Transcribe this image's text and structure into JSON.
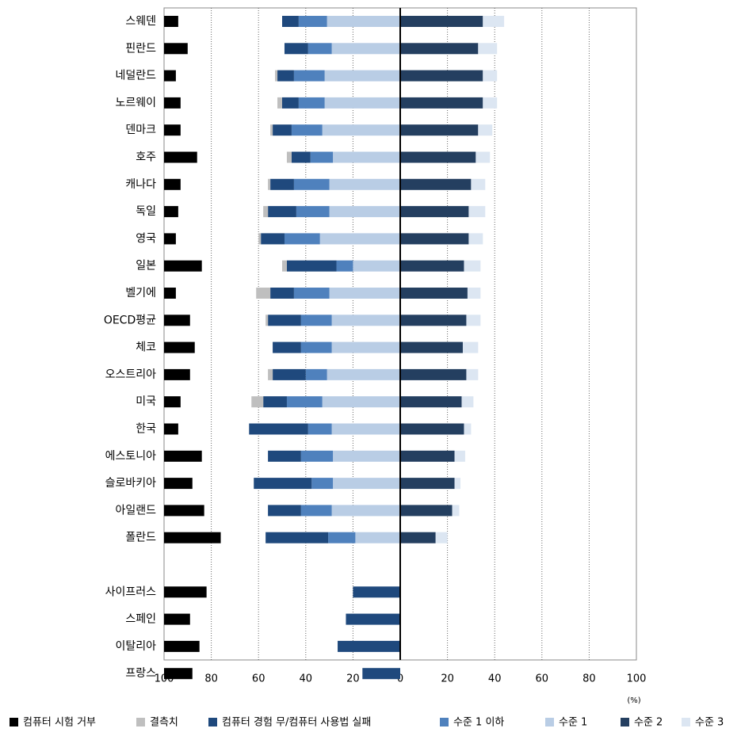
{
  "chart_data": {
    "type": "diverging-stacked-bar",
    "categories": [
      "스웨덴",
      "핀란드",
      "네덜란드",
      "노르웨이",
      "덴마크",
      "호주",
      "캐나다",
      "독일",
      "영국",
      "일본",
      "벨기에",
      "OECD평균",
      "체코",
      "오스트리아",
      "미국",
      "한국",
      "에스토니아",
      "슬로바키아",
      "아일랜드",
      "폴란드",
      null,
      "사이프러스",
      "스페인",
      "이탈리아",
      "프랑스"
    ],
    "series": [
      {
        "name": "컴퓨터 시험 거부",
        "color": "#000000",
        "values": [
          6,
          10,
          5,
          7,
          7,
          14,
          7,
          6,
          5,
          16,
          5,
          11,
          13,
          11,
          7,
          6,
          16,
          12,
          17,
          24,
          null,
          18,
          11,
          15,
          12
        ]
      },
      {
        "name": "결측치",
        "color": "#bfbfbf",
        "values": [
          null,
          null,
          1,
          2,
          1,
          2,
          1,
          2,
          1,
          2,
          6,
          1,
          null,
          2,
          5,
          null,
          null,
          null,
          null,
          null,
          null,
          null,
          null,
          null,
          null
        ]
      },
      {
        "name": "컴퓨터 경험 무/컴퓨터 사용법 실패",
        "color": "#1f497d",
        "values": [
          7,
          10,
          7,
          7,
          8,
          8,
          10,
          12,
          10,
          21,
          10,
          14,
          12,
          14,
          10,
          25,
          14,
          24.5,
          14,
          26.5,
          null,
          20,
          23,
          26.5,
          16
        ]
      },
      {
        "name": "수준 1 이하",
        "color": "#4f81bd",
        "values": [
          12,
          10,
          13,
          11,
          13,
          9.5,
          15,
          14,
          15,
          7,
          15,
          13,
          13,
          9,
          15,
          10,
          13.5,
          9,
          13,
          11.5,
          null,
          null,
          null,
          null,
          null
        ]
      },
      {
        "name": "수준 1",
        "color": "#b9cde5",
        "values": [
          31,
          29,
          32,
          32,
          33,
          28.5,
          30,
          30,
          34,
          20,
          30,
          29,
          29,
          31,
          33,
          29,
          28.5,
          28.5,
          29,
          19,
          null,
          null,
          null,
          null,
          null
        ]
      },
      {
        "name": "수준 2",
        "color": "#243f60",
        "values": [
          35,
          33,
          35,
          35,
          33,
          32,
          30,
          29,
          29,
          27,
          28.5,
          28,
          26.5,
          28,
          26,
          27,
          23,
          23,
          22,
          15,
          null,
          null,
          null,
          null,
          null
        ]
      },
      {
        "name": "수준 3",
        "color": "#dce6f2",
        "values": [
          9,
          8,
          6,
          6,
          6,
          6,
          6,
          7,
          6,
          7,
          5.5,
          6,
          6.5,
          5,
          5,
          3,
          4.5,
          2.5,
          3,
          5,
          null,
          null,
          null,
          null,
          null
        ]
      }
    ],
    "xlim": [
      -100,
      100
    ],
    "xticks": [
      {
        "value": -100,
        "label": "100"
      },
      {
        "value": -80,
        "label": "80"
      },
      {
        "value": -60,
        "label": "60"
      },
      {
        "value": -40,
        "label": "40"
      },
      {
        "value": -20,
        "label": "20"
      },
      0,
      20,
      40,
      60,
      80,
      100
    ],
    "xlabel": "(%)",
    "grid": true
  }
}
